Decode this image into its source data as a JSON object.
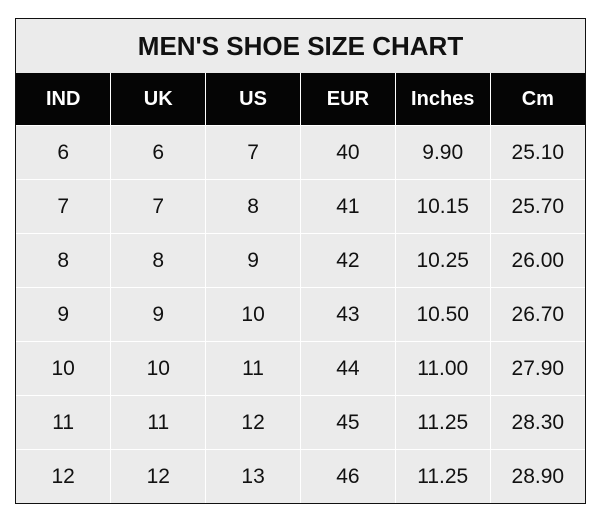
{
  "chart_data": {
    "type": "table",
    "title": "MEN'S SHOE SIZE CHART",
    "columns": [
      "IND",
      "UK",
      "US",
      "EUR",
      "Inches",
      "Cm"
    ],
    "rows": [
      [
        "6",
        "6",
        "7",
        "40",
        "9.90",
        "25.10"
      ],
      [
        "7",
        "7",
        "8",
        "41",
        "10.15",
        "25.70"
      ],
      [
        "8",
        "8",
        "9",
        "42",
        "10.25",
        "26.00"
      ],
      [
        "9",
        "9",
        "10",
        "43",
        "10.50",
        "26.70"
      ],
      [
        "10",
        "10",
        "11",
        "44",
        "11.00",
        "27.90"
      ],
      [
        "11",
        "11",
        "12",
        "45",
        "11.25",
        "28.30"
      ],
      [
        "12",
        "12",
        "13",
        "46",
        "11.25",
        "28.90"
      ]
    ],
    "colors": {
      "header_bg": "#050505",
      "header_text": "#ffffff",
      "body_bg": "#ebebeb",
      "grid": "#ffffff"
    }
  }
}
